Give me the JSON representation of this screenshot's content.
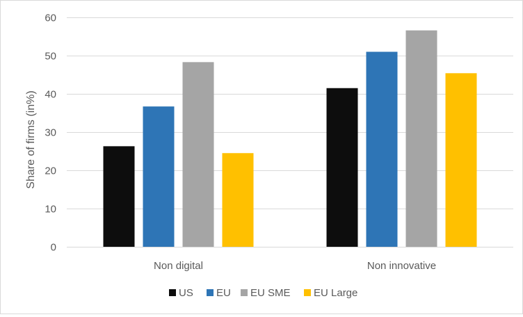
{
  "chart_data": {
    "type": "bar",
    "title": "",
    "xlabel": "",
    "ylabel": "Share of firms (in%)",
    "ylim": [
      0,
      60
    ],
    "yticks": [
      0,
      10,
      20,
      30,
      40,
      50,
      60
    ],
    "categories": [
      "Non digital",
      "Non innovative"
    ],
    "series": [
      {
        "name": "US",
        "color": "#0d0d0d",
        "values": [
          26.3,
          41.5
        ]
      },
      {
        "name": "EU",
        "color": "#2e75b6",
        "values": [
          36.7,
          51.0
        ]
      },
      {
        "name": "EU SME",
        "color": "#a5a5a5",
        "values": [
          48.3,
          56.6
        ]
      },
      {
        "name": "EU Large",
        "color": "#ffc000",
        "values": [
          24.5,
          45.4
        ]
      }
    ],
    "grid": true,
    "legend_position": "bottom"
  }
}
